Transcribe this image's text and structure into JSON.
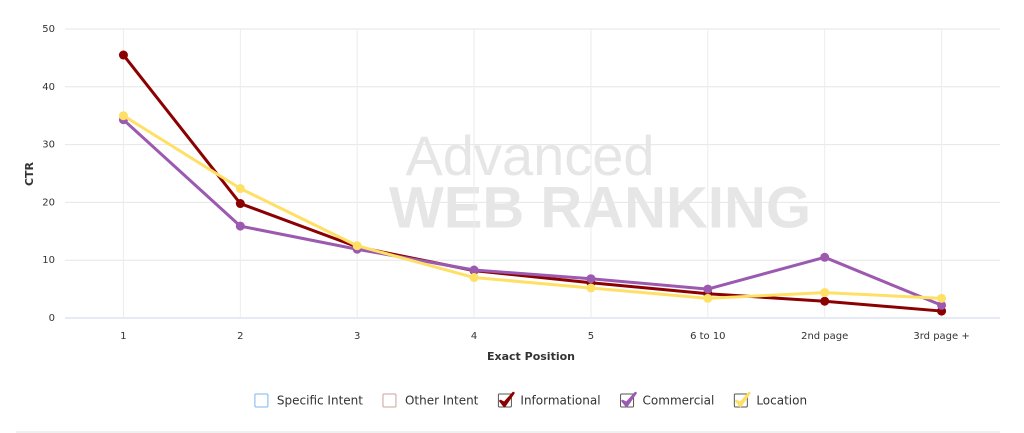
{
  "chart_data": {
    "type": "line",
    "watermark": [
      "Advanced",
      "WEB RANKING"
    ],
    "xlabel": "Exact Position",
    "ylabel": "CTR",
    "categories": [
      "1",
      "2",
      "3",
      "4",
      "5",
      "6 to 10",
      "2nd page",
      "3rd page +"
    ],
    "series": [
      {
        "name": "Specific Intent",
        "color": "#7cb5ec",
        "visible": false
      },
      {
        "name": "Other Intent",
        "color": "#c9a39b",
        "visible": false
      },
      {
        "name": "Informational",
        "color": "#8b0000",
        "visible": true,
        "values": [
          45.5,
          19.8,
          12.3,
          8.2,
          6.1,
          4.2,
          2.9,
          1.2
        ]
      },
      {
        "name": "Commercial",
        "color": "#9b59b0",
        "visible": true,
        "values": [
          34.3,
          15.9,
          11.9,
          8.3,
          6.8,
          5.0,
          10.5,
          2.2
        ]
      },
      {
        "name": "Location",
        "color": "#ffe066",
        "visible": true,
        "values": [
          35.0,
          22.4,
          12.5,
          7.0,
          5.2,
          3.4,
          4.4,
          3.4
        ]
      }
    ],
    "ylim": [
      0,
      50
    ],
    "yticks": [
      0,
      10,
      20,
      30,
      40,
      50
    ],
    "grid": true,
    "legend": "bottom"
  }
}
